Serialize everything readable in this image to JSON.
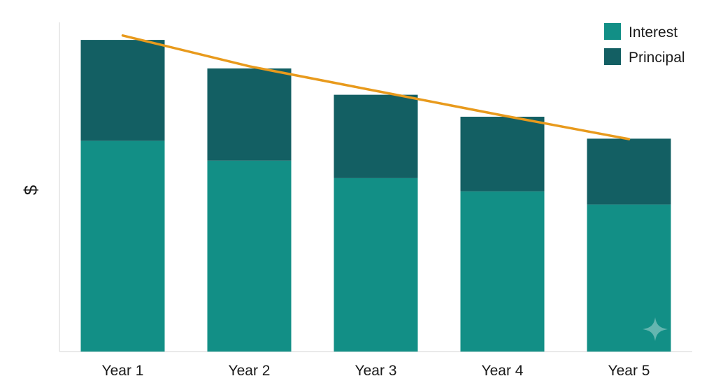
{
  "chart_data": {
    "type": "bar",
    "stacked": true,
    "title": "",
    "xlabel": "",
    "ylabel": "$",
    "categories": [
      "Year 1",
      "Year 2",
      "Year 3",
      "Year 4",
      "Year 5"
    ],
    "series": [
      {
        "name": "Interest",
        "color": "#128f86",
        "values": [
          48,
          43.5,
          39.5,
          36.5,
          33.5
        ]
      },
      {
        "name": "Principal",
        "color": "#135f63",
        "values": [
          23,
          21,
          19,
          17,
          15
        ]
      }
    ],
    "trend_line": {
      "color": "#e89a1c",
      "values": [
        72,
        65,
        59.4,
        53.8,
        48.4
      ]
    },
    "ylim": [
      0,
      75
    ],
    "grid": false,
    "legend_position": "top-right",
    "y_tick_labels": false
  }
}
